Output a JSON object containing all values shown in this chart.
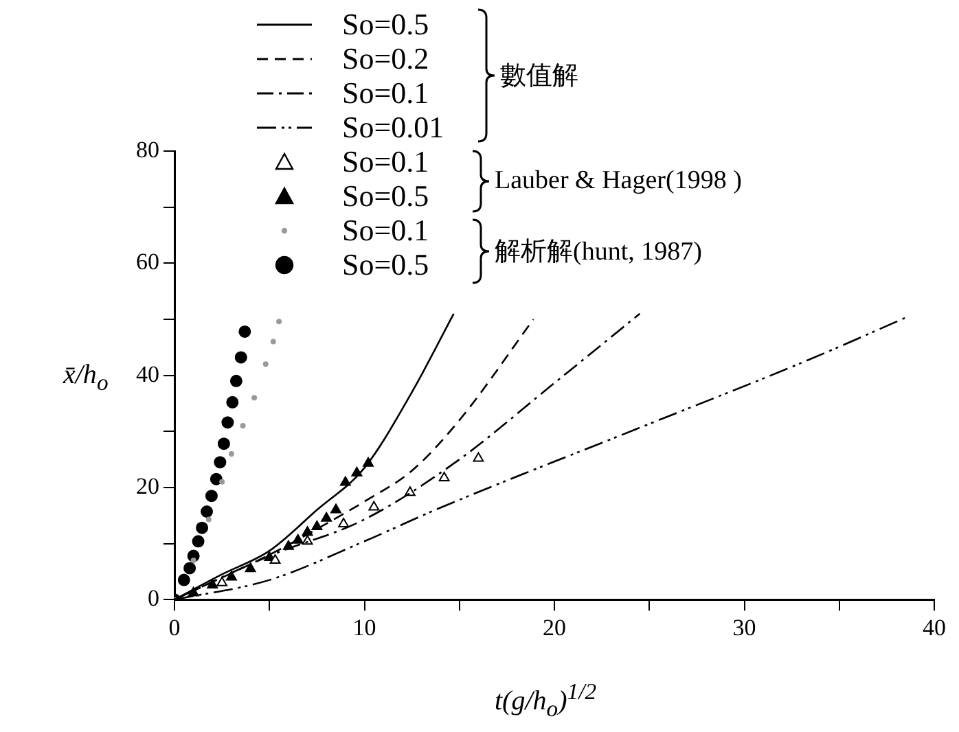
{
  "chart_data": {
    "type": "line",
    "xlabel": "t(g/h$_{o}$)$^{1/2}$",
    "ylabel": "x̄/h$_{o}$",
    "xlim": [
      0,
      40
    ],
    "xticks": [
      0,
      {
        "value": 5,
        "label": null
      },
      10,
      {
        "value": 15,
        "label": null
      },
      20,
      {
        "value": 25,
        "label": null
      },
      30,
      {
        "value": 35,
        "label": null
      },
      40
    ],
    "ylim": [
      0,
      80
    ],
    "yticks": [
      0,
      {
        "value": 10,
        "label": null
      },
      20,
      {
        "value": 30,
        "label": null
      },
      40,
      {
        "value": 50,
        "label": null
      },
      60,
      {
        "value": 70,
        "label": null
      },
      80
    ],
    "grid": false,
    "legend": "top",
    "annotations": [
      "數值解",
      "Lauber & Hager(1998 )",
      "解析解(hunt, 1987)"
    ],
    "series": [
      {
        "name": "So=0.5",
        "line_style": "solid",
        "marker": "none",
        "color": "#000000",
        "x": [
          0,
          2.5,
          5,
          7.5,
          10,
          12.5,
          14.7
        ],
        "values": [
          0,
          4.5,
          8.7,
          16,
          23.5,
          37,
          51
        ]
      },
      {
        "name": "So=0.2",
        "line_style": "dashed",
        "marker": "none",
        "color": "#000000",
        "x": [
          0,
          5,
          7.5,
          10,
          12.5,
          15,
          18.9
        ],
        "values": [
          0,
          8,
          12.6,
          17.5,
          23,
          32,
          50
        ]
      },
      {
        "name": "So=0.1",
        "line_style": "dashdot",
        "marker": "none",
        "color": "#000000",
        "x": [
          0,
          5,
          10,
          15,
          19.7,
          24.5
        ],
        "values": [
          0,
          7.8,
          14.3,
          25,
          37.8,
          51
        ]
      },
      {
        "name": "So=0.01",
        "line_style": "dashdotdot",
        "marker": "none",
        "color": "#000000",
        "x": [
          0,
          5,
          10,
          13.8,
          24.3,
          33.2,
          38.5
        ],
        "values": [
          0,
          3.5,
          10.4,
          16.1,
          30.4,
          42.5,
          50.3
        ]
      },
      {
        "name": "So=0.1",
        "type": "scatter",
        "marker": "triangle",
        "color": "#000000",
        "x": [
          2.5,
          5.3,
          7,
          8.9,
          10.5,
          12.4,
          14.2,
          16
        ],
        "values": [
          3,
          7,
          10.4,
          13.5,
          16.5,
          19.1,
          21.7,
          25.2
        ]
      },
      {
        "name": "So=0.5",
        "type": "scatter",
        "marker": "triangle",
        "color": "#000000",
        "x": [
          1,
          2,
          3,
          4,
          5,
          6,
          6.5,
          7,
          7.5,
          8,
          8.5,
          9,
          9.6,
          10.2
        ],
        "values": [
          1.2,
          2.6,
          4,
          5.5,
          7.5,
          9.5,
          10.6,
          12,
          13,
          14.5,
          16,
          20.9,
          22.6,
          24.3
        ]
      },
      {
        "name": "So=0.1",
        "type": "scatter",
        "marker": "circle",
        "color": "#9a9a9a",
        "x": [
          0,
          1,
          1.8,
          2.5,
          3,
          3.6,
          4.2,
          4.8,
          5.2,
          5.5
        ],
        "values": [
          0,
          7,
          14.3,
          21,
          26,
          31,
          36,
          42,
          46,
          49.6
        ]
      },
      {
        "name": "So=0.5",
        "type": "scatter",
        "marker": "circle",
        "color": "#000000",
        "x": [
          0,
          0.5,
          0.8,
          1,
          1.25,
          1.45,
          1.7,
          1.95,
          2.2,
          2.4,
          2.6,
          2.8,
          3.05,
          3.25,
          3.5,
          3.7
        ],
        "values": [
          0,
          3.5,
          5.6,
          7.8,
          10.4,
          12.8,
          15.7,
          18.5,
          21.5,
          24.5,
          27.8,
          31.6,
          35.2,
          39,
          43.2,
          47.8
        ]
      }
    ]
  }
}
